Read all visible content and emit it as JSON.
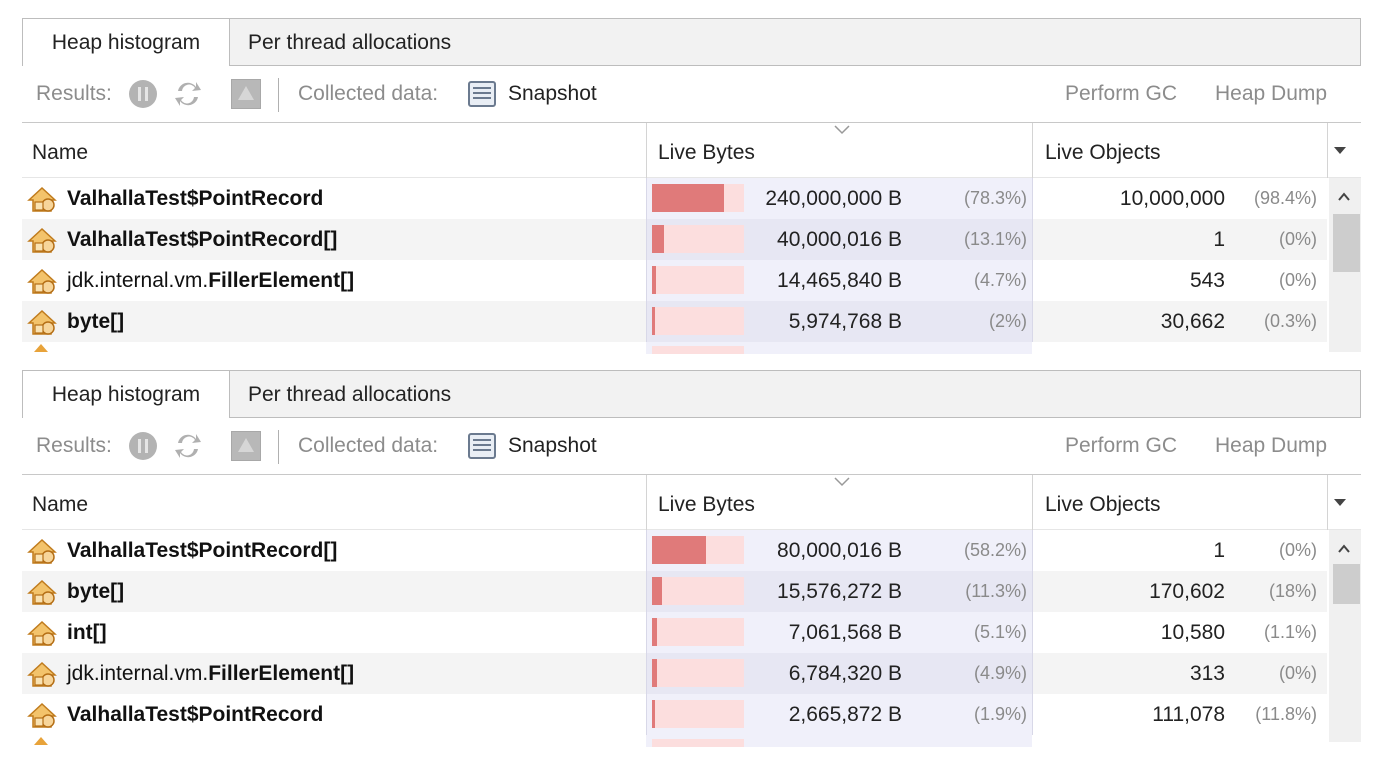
{
  "panels": [
    {
      "tabs": [
        {
          "label": "Heap histogram",
          "active": true
        },
        {
          "label": "Per thread allocations",
          "active": false
        }
      ],
      "toolbar": {
        "results_label": "Results:",
        "collected_label": "Collected data:",
        "snapshot_label": "Snapshot",
        "perform_gc_label": "Perform GC",
        "heap_dump_label": "Heap Dump",
        "icons": [
          "pause-icon",
          "refresh-icon",
          "warning-icon",
          "snapshot-icon"
        ]
      },
      "columns": {
        "name": "Name",
        "live_bytes": "Live Bytes",
        "live_objects": "Live Objects"
      },
      "rows": [
        {
          "prefix": "",
          "name": "ValhallaTest$PointRecord",
          "bytes": "240,000,000 B",
          "bytes_pct": "(78.3%)",
          "bytes_share": 0.783,
          "objects": "10,000,000",
          "objects_pct": "(98.4%)"
        },
        {
          "prefix": "",
          "name": "ValhallaTest$PointRecord[]",
          "bytes": "40,000,016 B",
          "bytes_pct": "(13.1%)",
          "bytes_share": 0.131,
          "objects": "1",
          "objects_pct": "(0%)"
        },
        {
          "prefix": "jdk.internal.vm.",
          "name": "FillerElement[]",
          "bytes": "14,465,840 B",
          "bytes_pct": "(4.7%)",
          "bytes_share": 0.047,
          "objects": "543",
          "objects_pct": "(0%)"
        },
        {
          "prefix": "",
          "name": "byte[]",
          "bytes": "5,974,768 B",
          "bytes_pct": "(2%)",
          "bytes_share": 0.02,
          "objects": "30,662",
          "objects_pct": "(0.3%)"
        }
      ]
    },
    {
      "tabs": [
        {
          "label": "Heap histogram",
          "active": true
        },
        {
          "label": "Per thread allocations",
          "active": false
        }
      ],
      "toolbar": {
        "results_label": "Results:",
        "collected_label": "Collected data:",
        "snapshot_label": "Snapshot",
        "perform_gc_label": "Perform GC",
        "heap_dump_label": "Heap Dump",
        "icons": [
          "pause-icon",
          "refresh-icon",
          "warning-icon",
          "snapshot-icon"
        ]
      },
      "columns": {
        "name": "Name",
        "live_bytes": "Live Bytes",
        "live_objects": "Live Objects"
      },
      "rows": [
        {
          "prefix": "",
          "name": "ValhallaTest$PointRecord[]",
          "bytes": "80,000,016 B",
          "bytes_pct": "(58.2%)",
          "bytes_share": 0.582,
          "objects": "1",
          "objects_pct": "(0%)"
        },
        {
          "prefix": "",
          "name": "byte[]",
          "bytes": "15,576,272 B",
          "bytes_pct": "(11.3%)",
          "bytes_share": 0.113,
          "objects": "170,602",
          "objects_pct": "(18%)"
        },
        {
          "prefix": "",
          "name": "int[]",
          "bytes": "7,061,568 B",
          "bytes_pct": "(5.1%)",
          "bytes_share": 0.051,
          "objects": "10,580",
          "objects_pct": "(1.1%)"
        },
        {
          "prefix": "jdk.internal.vm.",
          "name": "FillerElement[]",
          "bytes": "6,784,320 B",
          "bytes_pct": "(4.9%)",
          "bytes_share": 0.049,
          "objects": "313",
          "objects_pct": "(0%)"
        },
        {
          "prefix": "",
          "name": "ValhallaTest$PointRecord",
          "bytes": "2,665,872 B",
          "bytes_pct": "(1.9%)",
          "bytes_share": 0.019,
          "objects": "111,078",
          "objects_pct": "(11.8%)"
        }
      ]
    }
  ],
  "colors": {
    "bar_fill": "#e07a7a",
    "bar_track": "#fcdede",
    "class_icon": "#e8a33a"
  }
}
